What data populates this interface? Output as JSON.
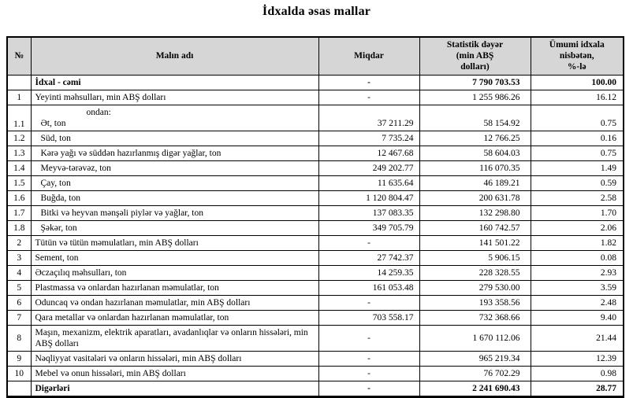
{
  "title": "İdxalda əsas mallar",
  "colors": {
    "header_background": "#d6d6d6",
    "border": "#000000",
    "text": "#000000"
  },
  "table": {
    "headers": {
      "no": "№",
      "name": "Malın adı",
      "quantity": "Miqdar",
      "value": "Statistik dəyər\n(min ABŞ\ndolları)",
      "share": "Ümumi idxala\nnisbətən,\n%-lə"
    },
    "rows": [
      {
        "no": "",
        "name": "İdxal - cəmi",
        "quantity": "-",
        "value": "7 790 703.53",
        "share": "100.00",
        "bold": true,
        "sub": false
      },
      {
        "no": "1",
        "name": "Yeyinti məhsulları, min ABŞ dolları",
        "quantity": "-",
        "value": "1 255 986.26",
        "share": "16.12",
        "bold": false,
        "sub": false
      },
      {
        "no": "1.1",
        "pre": "ondan:",
        "name": "Ət, ton",
        "quantity": "37 211.29",
        "value": "58 154.92",
        "share": "0.75",
        "bold": false,
        "sub": true
      },
      {
        "no": "1.2",
        "name": "Süd, ton",
        "quantity": "7 735.24",
        "value": "12 766.25",
        "share": "0.16",
        "bold": false,
        "sub": true
      },
      {
        "no": "1.3",
        "name": "Kərə yağı və süddən hazırlanmış digər yağlar, ton",
        "quantity": "12 467.68",
        "value": "58 604.03",
        "share": "0.75",
        "bold": false,
        "sub": true
      },
      {
        "no": "1.4",
        "name": "Meyvə-tərəvəz, ton",
        "quantity": "249 202.77",
        "value": "116 070.35",
        "share": "1.49",
        "bold": false,
        "sub": true
      },
      {
        "no": "1.5",
        "name": "Çay, ton",
        "quantity": "11 635.64",
        "value": "46 189.21",
        "share": "0.59",
        "bold": false,
        "sub": true
      },
      {
        "no": "1.6",
        "name": "Buğda, ton",
        "quantity": "1 120 804.47",
        "value": "200 631.78",
        "share": "2.58",
        "bold": false,
        "sub": true
      },
      {
        "no": "1.7",
        "name": "Bitki və heyvan mənşəli piylər və yağlar, ton",
        "quantity": "137 083.35",
        "value": "132 298.80",
        "share": "1.70",
        "bold": false,
        "sub": true
      },
      {
        "no": "1.8",
        "name": "Şəkər, ton",
        "quantity": "349 705.79",
        "value": "160 742.57",
        "share": "2.06",
        "bold": false,
        "sub": true
      },
      {
        "no": "2",
        "name": "Tütün və tütün məmulatları, min ABŞ dolları",
        "quantity": "-",
        "value": "141 501.22",
        "share": "1.82",
        "bold": false,
        "sub": false
      },
      {
        "no": "3",
        "name": "Sement, ton",
        "quantity": "27 742.37",
        "value": "5 906.15",
        "share": "0.08",
        "bold": false,
        "sub": false
      },
      {
        "no": "4",
        "name": "Əczaçılıq məhsulları, ton",
        "quantity": "14 259.35",
        "value": "228 328.55",
        "share": "2.93",
        "bold": false,
        "sub": false
      },
      {
        "no": "5",
        "name": "Plastmassa və onlardan hazırlanan məmulatlar, ton",
        "quantity": "161 053.48",
        "value": "279 530.00",
        "share": "3.59",
        "bold": false,
        "sub": false
      },
      {
        "no": "6",
        "name": "Oduncaq və ondan hazırlanan məmulatlar, min ABŞ dolları",
        "quantity": "-",
        "value": "193 358.56",
        "share": "2.48",
        "bold": false,
        "sub": false
      },
      {
        "no": "7",
        "name": "Qara metallar və onlardan hazırlanan məmulatlar, ton",
        "quantity": "703 558.17",
        "value": "732 368.66",
        "share": "9.40",
        "bold": false,
        "sub": false
      },
      {
        "no": "8",
        "name": "Maşın, mexanizm, elektrik aparatları, avadanlıqlar və onların hissələri, min ABŞ dolları",
        "quantity": "-",
        "value": "1 670 112.06",
        "share": "21.44",
        "bold": false,
        "sub": false
      },
      {
        "no": "9",
        "name": "Nəqliyyat vasitələri və onların hissələri, min ABŞ dolları",
        "quantity": "-",
        "value": "965 219.34",
        "share": "12.39",
        "bold": false,
        "sub": false
      },
      {
        "no": "10",
        "name": "Mebel və onun hissələri, min ABŞ dolları",
        "quantity": "-",
        "value": "76 702.29",
        "share": "0.98",
        "bold": false,
        "sub": false
      },
      {
        "no": "",
        "name": "Digərləri",
        "quantity": "-",
        "value": "2 241 690.43",
        "share": "28.77",
        "bold": true,
        "sub": false
      }
    ]
  }
}
